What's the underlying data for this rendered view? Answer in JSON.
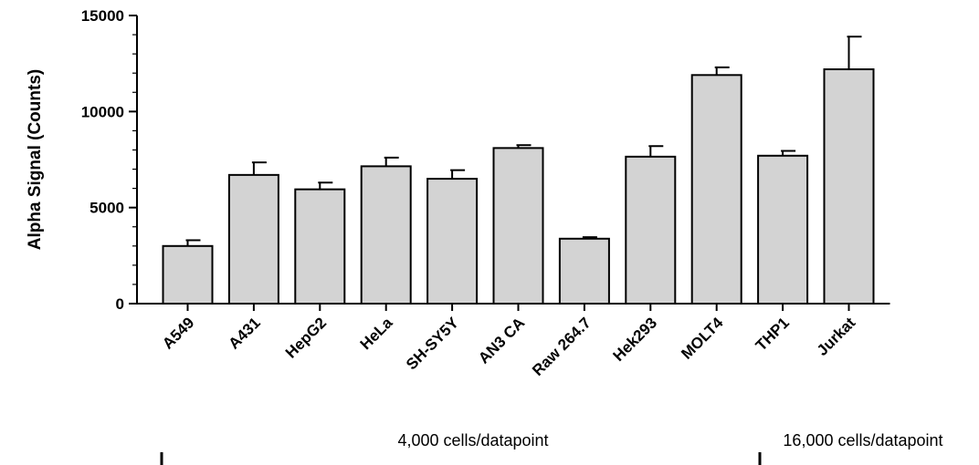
{
  "chart_data": {
    "type": "bar",
    "title": "",
    "xlabel": "",
    "ylabel": "Alpha Signal (Counts)",
    "ylim": [
      0,
      15000
    ],
    "yticks": [
      0,
      5000,
      10000,
      15000
    ],
    "categories": [
      "A549",
      "A431",
      "HepG2",
      "HeLa",
      "SH-SY5Y",
      "AN3 CA",
      "Raw 264.7",
      "Hek293",
      "MOLT4",
      "THP1",
      "Jurkat"
    ],
    "values": [
      3000,
      6700,
      5950,
      7150,
      6500,
      8100,
      3380,
      7650,
      11900,
      7700,
      12200
    ],
    "errors": [
      300,
      650,
      350,
      450,
      450,
      150,
      80,
      550,
      400,
      250,
      1700
    ],
    "grid": false,
    "legend": "none",
    "bar_color": "#d3d3d3",
    "groups": [
      {
        "label": "4,000 cells/datapoint",
        "from": 0,
        "to": 7
      },
      {
        "label": "16,000 cells/datapoint",
        "from": 8,
        "to": 10
      }
    ]
  }
}
